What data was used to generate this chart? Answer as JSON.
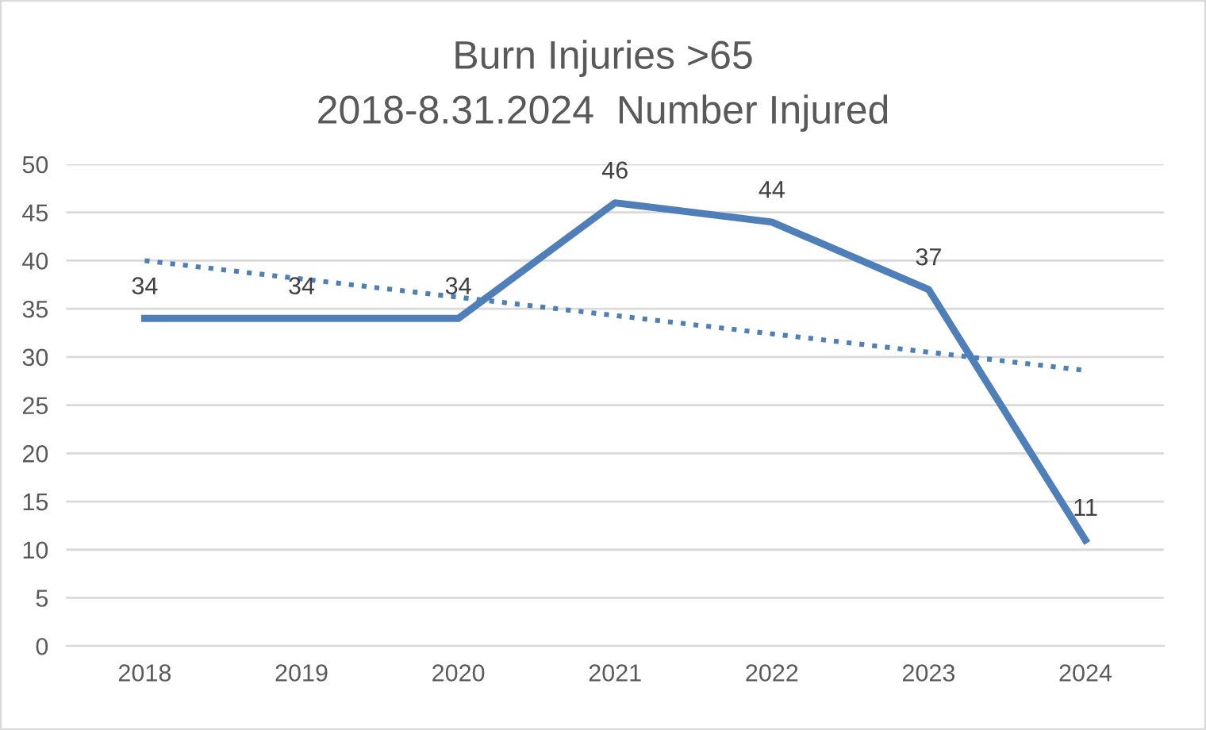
{
  "chart_data": {
    "type": "line",
    "title": "Burn Injuries >65",
    "subtitle": "2018-8.31.2024  Number Injured",
    "categories": [
      "2018",
      "2019",
      "2020",
      "2021",
      "2022",
      "2023",
      "2024"
    ],
    "series": [
      {
        "color": "#4f7fb8",
        "values": [
          34,
          34,
          34,
          46,
          44,
          37,
          11
        ],
        "value_labels": [
          "34",
          "34",
          "34",
          "46",
          "44",
          "37",
          "11"
        ],
        "line_style": "solid"
      },
      {
        "type": "line",
        "color": "#4f7fb8",
        "values": [
          40,
          38.1,
          36.2,
          34.3,
          32.4,
          30.5,
          28.6
        ],
        "line_style": "dotted"
      }
    ],
    "ylim": [
      0,
      50
    ],
    "yticks": [
      0,
      5,
      10,
      15,
      20,
      25,
      30,
      35,
      40,
      45,
      50
    ],
    "grid": "y",
    "legend": false,
    "marker": "none"
  }
}
